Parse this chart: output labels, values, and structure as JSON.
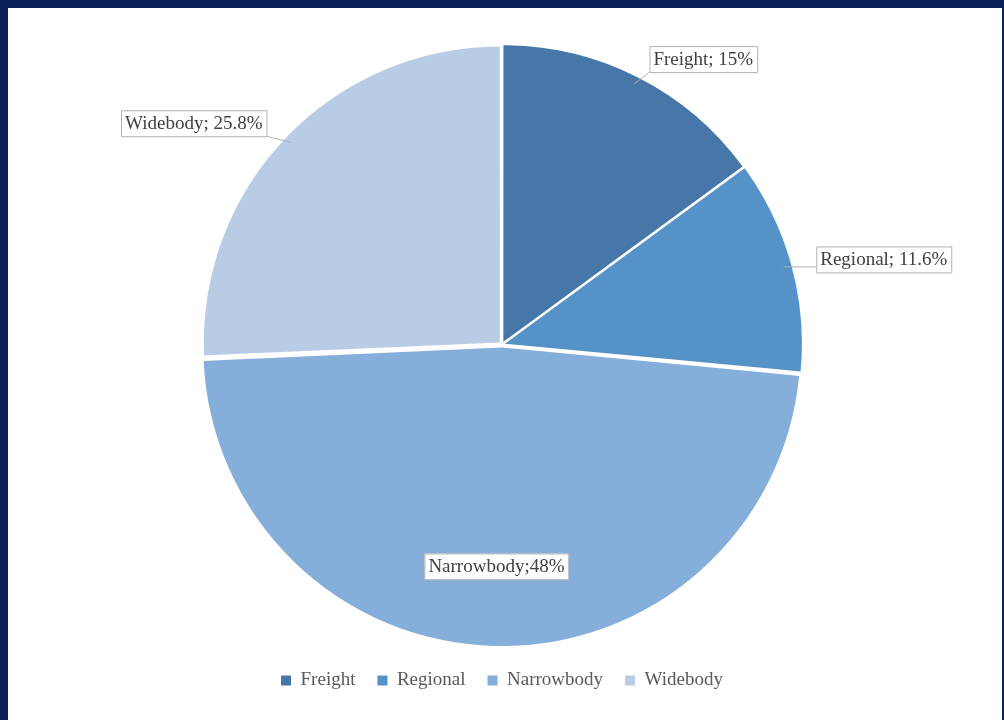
{
  "chart_data": {
    "type": "pie",
    "categories": [
      "Freight",
      "Regional",
      "Narrowbody",
      "Widebody"
    ],
    "values": [
      15,
      11.6,
      48,
      25.8
    ],
    "colors": [
      "#4677a8",
      "#5592c8",
      "#86aedb",
      "#b8cce6"
    ],
    "value_labels": [
      "Freight; 15%",
      "Regional; 11.6%",
      "Narrowbody;48%",
      "Widebody; 25.8%"
    ],
    "legend": "bottom"
  }
}
